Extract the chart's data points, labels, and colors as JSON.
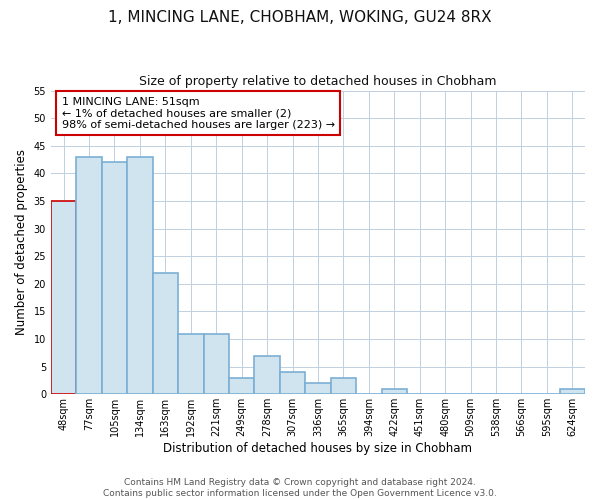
{
  "title": "1, MINCING LANE, CHOBHAM, WOKING, GU24 8RX",
  "subtitle": "Size of property relative to detached houses in Chobham",
  "xlabel": "Distribution of detached houses by size in Chobham",
  "ylabel": "Number of detached properties",
  "bin_labels": [
    "48sqm",
    "77sqm",
    "105sqm",
    "134sqm",
    "163sqm",
    "192sqm",
    "221sqm",
    "249sqm",
    "278sqm",
    "307sqm",
    "336sqm",
    "365sqm",
    "394sqm",
    "422sqm",
    "451sqm",
    "480sqm",
    "509sqm",
    "538sqm",
    "566sqm",
    "595sqm",
    "624sqm"
  ],
  "bar_heights": [
    35,
    43,
    42,
    43,
    22,
    11,
    11,
    3,
    7,
    4,
    2,
    3,
    0,
    1,
    0,
    0,
    0,
    0,
    0,
    0,
    1
  ],
  "bar_color": "#d0e4f0",
  "bar_edge_color": "#7bafd4",
  "highlight_bar_index": 0,
  "highlight_edge_color": "#cc0000",
  "annotation_text": "1 MINCING LANE: 51sqm\n← 1% of detached houses are smaller (2)\n98% of semi-detached houses are larger (223) →",
  "annotation_box_edge": "#cc0000",
  "ylim": [
    0,
    55
  ],
  "yticks": [
    0,
    5,
    10,
    15,
    20,
    25,
    30,
    35,
    40,
    45,
    50,
    55
  ],
  "footer_text": "Contains HM Land Registry data © Crown copyright and database right 2024.\nContains public sector information licensed under the Open Government Licence v3.0.",
  "bg_color": "#ffffff",
  "grid_color": "#c0d0e0",
  "title_fontsize": 11,
  "subtitle_fontsize": 9,
  "axis_label_fontsize": 8.5,
  "tick_fontsize": 7,
  "annotation_fontsize": 8,
  "footer_fontsize": 6.5
}
